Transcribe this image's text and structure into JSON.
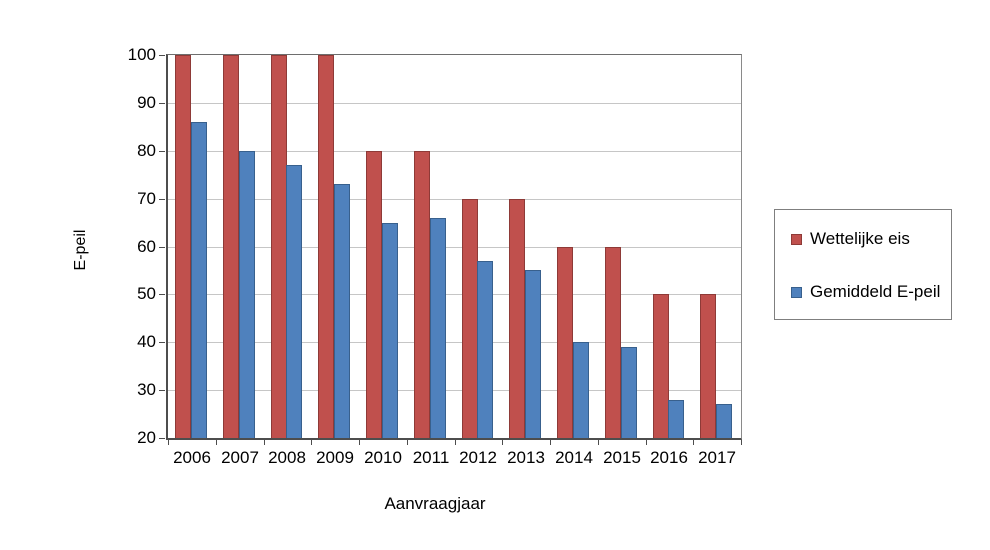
{
  "chart_data": {
    "type": "bar",
    "title": "",
    "xlabel": "Aanvraagjaar",
    "ylabel": "E-peil",
    "categories": [
      "2006",
      "2007",
      "2008",
      "2009",
      "2010",
      "2011",
      "2012",
      "2013",
      "2014",
      "2015",
      "2016",
      "2017"
    ],
    "series": [
      {
        "name": "Wettelijke eis",
        "color": "#c0504d",
        "border_color": "#8e3a37",
        "values": [
          100,
          100,
          100,
          100,
          80,
          80,
          70,
          70,
          60,
          60,
          50,
          50
        ]
      },
      {
        "name": "Gemiddeld E-peil",
        "color": "#4f81bd",
        "border_color": "#38608d",
        "values": [
          86,
          80,
          77,
          73,
          65,
          66,
          57,
          55,
          40,
          39,
          28,
          27
        ]
      }
    ],
    "ylim": [
      20,
      100
    ],
    "ytick_step": 10,
    "ytick_labels": [
      "20",
      "30",
      "40",
      "50",
      "60",
      "70",
      "80",
      "90",
      "100"
    ],
    "grid": true,
    "gridline_color": "#c6c6c6",
    "legend_position": "right",
    "background_color": "#ffffff"
  }
}
